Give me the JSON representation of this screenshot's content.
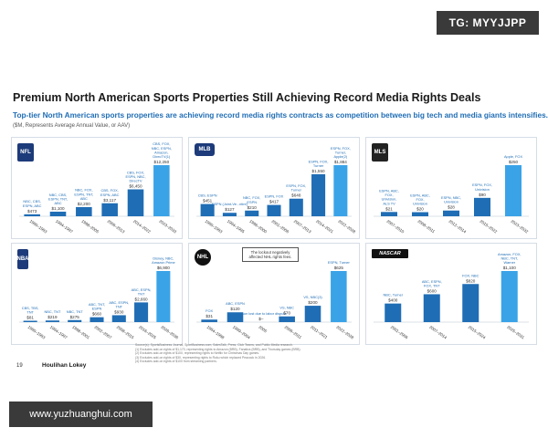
{
  "watermarks": {
    "top": "TG: MYYJJPP",
    "bottom": "www.yuzhuanghui.com"
  },
  "header": {
    "title": "Premium North American Sports Properties Still Achieving Record Media Rights Deals",
    "subtitle": "Top-tier North American sports properties are achieving record media rights contracts as competition between big tech and media giants intensifies.",
    "units_note": "($M, Represents Average Annual Value, or AAV)"
  },
  "footer": {
    "page_number": "19",
    "brand": "Houlihan Lokey",
    "sources": [
      "Source(s): SportsBusiness Journal, SportBusiness.com, SalesTalk, Press, Club Teams, and Public Media research.",
      "(1) Excludes add-on rights of $1,170, representing rights to Amazon (BRB), Fanatics (BRB), and Thursday games (BRB).",
      "(2) Excludes add-on rights of $100, representing rights to Netflix for Christmas Day games.",
      "(3) Excludes add-on rights of $30, representing rights to Roku which replaced Peacock in 2026.",
      "(4) Excludes add-on rights of $100 from streaming partners."
    ]
  },
  "panels": {
    "nfl": {
      "logo": "NFL"
    },
    "mlb": {
      "logo": "MLB"
    },
    "mls": {
      "logo": "MLS"
    },
    "nba": {
      "logo": "NBA"
    },
    "nhl": {
      "logo": "NHL",
      "callout": "The lockout negatively affected NHL rights fees."
    },
    "nascar": {
      "logo": "NASCAR"
    }
  },
  "colors": {
    "bar_light": "#1f6db5",
    "bar_dark": "#0a3f82",
    "last_bar": "#3aa3e8",
    "label": "#1f6db5"
  },
  "chart_data": [
    {
      "id": "nfl",
      "type": "bar",
      "categories": [
        "1990–1993",
        "1994–1997",
        "1998–2005",
        "2006–2013",
        "2014–2022",
        "2023–2033"
      ],
      "values": [
        473,
        1100,
        2200,
        3117,
        6450,
        12250
      ],
      "value_labels": [
        "$473",
        "$1,100",
        "$2,200",
        "$3,117",
        "$6,450",
        "$12,250"
      ],
      "partner_labels": [
        "NBC, CBS, ESPN, ABC",
        "NBC, CBS, ESPN, TNT, ABC",
        "NBC, FOX, ESPN, TNT, ABC",
        "CBS, FOX, ESPN, ABC",
        "CBS, FOX, ESPN, NBC, DirecTV",
        "CBS, FOX, NBC, ESPN, Amazon, DirecTV(1)"
      ],
      "ylim": [
        0,
        12250
      ]
    },
    {
      "id": "mlb",
      "type": "bar",
      "categories": [
        "1990–1993",
        "1994–1995",
        "1996–2000",
        "2001–2006",
        "2007–2013",
        "2014–2021",
        "2022–2028"
      ],
      "values": [
        451,
        127,
        210,
        417,
        648,
        1550,
        1884
      ],
      "value_labels": [
        "$451",
        "$127",
        "$210",
        "$417",
        "$648",
        "$1,550",
        "$1,884"
      ],
      "partner_labels": [
        "CBS, ESPN",
        "ESPN (Joint-Ve...ntire)",
        "NBC, FOX, ESPN",
        "ESPN, FOX",
        "ESPN, FOX, Turner",
        "ESPN, FOX, Turner",
        "ESPN, FOX, Turner, Apple(2)"
      ],
      "ylim": [
        0,
        1884
      ]
    },
    {
      "id": "mls",
      "type": "bar",
      "categories": [
        "2007–2010",
        "2008–2011",
        "2012–2014",
        "2015–2022",
        "2023–2032"
      ],
      "values": [
        21,
        20,
        28,
        90,
        250
      ],
      "value_labels": [
        "$21",
        "$20",
        "$28",
        "$90",
        "$250"
      ],
      "partner_labels": [
        "ESPN, ABC, FOX, Univision, ALS TV",
        "ESPN, ABC, FOX, Univision",
        "ESPN, NBC, Univision",
        "ESPN, FOX, Univision",
        "Apple, FOX"
      ],
      "ylim": [
        0,
        250
      ]
    },
    {
      "id": "nba",
      "type": "bar",
      "categories": [
        "1990–1993",
        "1994–1997",
        "1998–2001",
        "2002–2007",
        "2008–2015",
        "2016–2025",
        "2026–2036"
      ],
      "values": [
        81,
        219,
        275,
        660,
        930,
        2660,
        6900
      ],
      "value_labels": [
        "$81",
        "$219",
        "$275",
        "$660",
        "$930",
        "$2,660",
        "$6,900"
      ],
      "partner_labels": [
        "CBS, TBS, TNT",
        "NBC, TNT",
        "NBC, TNT",
        "ABC, TNT, ESPN",
        "ABC, ESPN, TNT",
        "ABC, ESPN, TNT",
        "Disney, NBC, Amazon Prime"
      ],
      "ylim": [
        0,
        6900
      ]
    },
    {
      "id": "nhl",
      "type": "bar",
      "categories": [
        "1994–1998",
        "1999–2004",
        "2005",
        "2006–2011",
        "2011–2021",
        "2022–2028"
      ],
      "values": [
        31,
        120,
        0,
        70,
        200,
        625
      ],
      "value_labels": [
        "$31",
        "$120",
        "$–",
        "$70",
        "$200",
        "$625"
      ],
      "partner_labels": [
        "FOX",
        "ABC, ESPN",
        "Season lost due to labor dispute",
        "VS, NBC",
        "VS, NBC(3)",
        "ESPN, Turner"
      ],
      "ylim": [
        0,
        625
      ]
    },
    {
      "id": "nascar",
      "type": "bar",
      "categories": [
        "2001–2006",
        "2007–2014",
        "2015–2024",
        "2025–2031"
      ],
      "values": [
        400,
        600,
        820,
        1100
      ],
      "value_labels": [
        "$400",
        "$600",
        "$820",
        "$1,100"
      ],
      "partner_labels": [
        "NBC, Turner",
        "ABC, ESPN, FOX, TNT",
        "FOX, NBC",
        "Amazon, FOX, NBC, TNT, Warner"
      ],
      "ylim": [
        0,
        1100
      ]
    }
  ]
}
